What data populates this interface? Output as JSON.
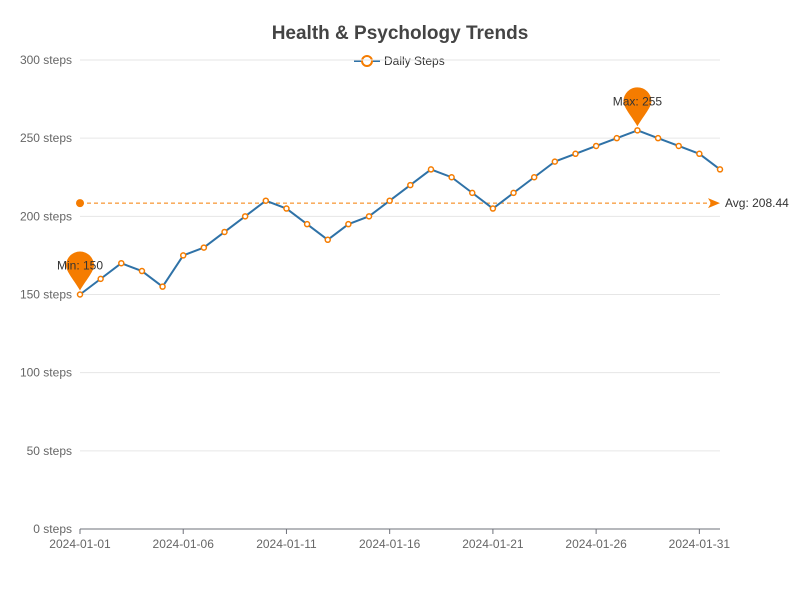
{
  "chart_data": {
    "type": "line",
    "title": "Health & Psychology Trends",
    "xlabel": "",
    "ylabel": "",
    "y_unit": "steps",
    "ylim": [
      0,
      300
    ],
    "y_ticks": [
      0,
      50,
      100,
      150,
      200,
      250,
      300
    ],
    "y_tick_labels": [
      "0 steps",
      "50 steps",
      "100 steps",
      "150 steps",
      "200 steps",
      "250 steps",
      "300 steps"
    ],
    "x_tick_labels": [
      "2024-01-01",
      "2024-01-06",
      "2024-01-11",
      "2024-01-16",
      "2024-01-21",
      "2024-01-26",
      "2024-01-31"
    ],
    "x_tick_index": [
      0,
      5,
      10,
      15,
      20,
      25,
      30
    ],
    "legend_position": "top-center",
    "grid": true,
    "categories": [
      "2024-01-01",
      "2024-01-02",
      "2024-01-03",
      "2024-01-04",
      "2024-01-05",
      "2024-01-06",
      "2024-01-07",
      "2024-01-08",
      "2024-01-09",
      "2024-01-10",
      "2024-01-11",
      "2024-01-12",
      "2024-01-13",
      "2024-01-14",
      "2024-01-15",
      "2024-01-16",
      "2024-01-17",
      "2024-01-18",
      "2024-01-19",
      "2024-01-20",
      "2024-01-21",
      "2024-01-22",
      "2024-01-23",
      "2024-01-24",
      "2024-01-25",
      "2024-01-26",
      "2024-01-27",
      "2024-01-28",
      "2024-01-29",
      "2024-01-30",
      "2024-01-31",
      "2024-02-01"
    ],
    "series": [
      {
        "name": "Daily Steps",
        "line_color": "#2f72a7",
        "marker_color": "#f57c00",
        "values": [
          150,
          160,
          170,
          165,
          155,
          175,
          180,
          190,
          200,
          210,
          205,
          195,
          185,
          195,
          200,
          210,
          220,
          230,
          225,
          215,
          205,
          215,
          225,
          235,
          240,
          245,
          250,
          255,
          250,
          245,
          240,
          230
        ]
      }
    ],
    "annotations": {
      "max": {
        "label": "Max: 255",
        "value": 255,
        "index": 27
      },
      "min": {
        "label": "Min: 150",
        "value": 150,
        "index": 0
      },
      "avg": {
        "label": "Avg: 208.44",
        "value": 208.44
      }
    },
    "accent_color": "#f57c00"
  }
}
